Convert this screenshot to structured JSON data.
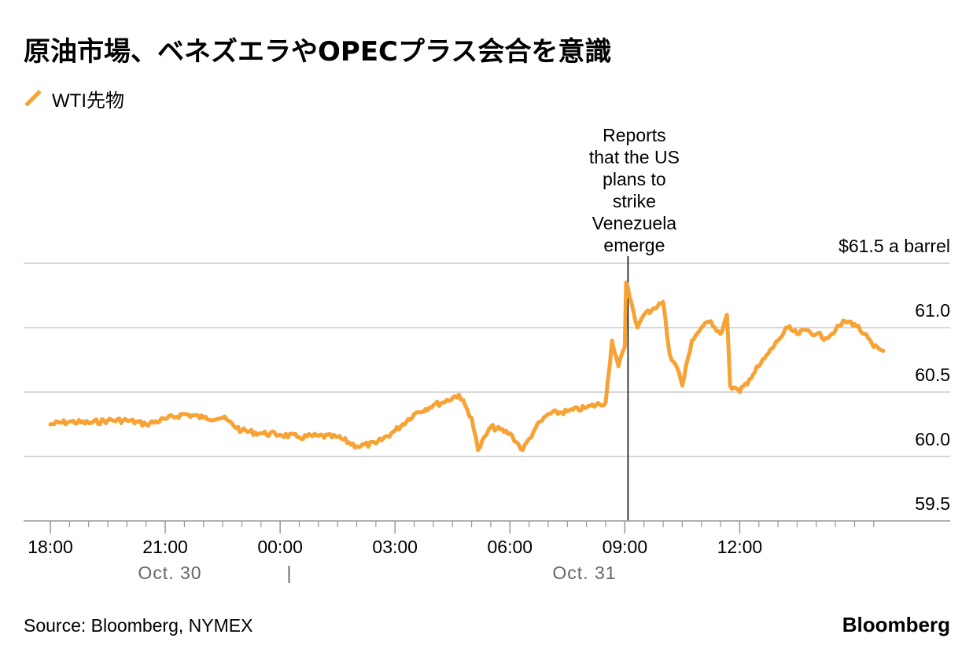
{
  "title": "原油市場、ベネズエラやOPECプラス会合を意識",
  "source": "Source: Bloomberg, NYMEX",
  "brand": "Bloomberg",
  "colors": {
    "series": "#f7a234",
    "grid": "#cccccc",
    "axis": "#999999",
    "date_label": "#666666"
  },
  "chart_data": {
    "type": "line",
    "title": "原油市場、ベネズエラやOPECプラス会合を意識",
    "ylabel": "$61.5 a barrel",
    "ylim": [
      59.5,
      61.5
    ],
    "xlim": [
      "Oct. 30 18:00",
      "Oct. 31 15:45"
    ],
    "x_ticks": [
      "18:00",
      "21:00",
      "00:00",
      "03:00",
      "06:00",
      "09:00",
      "12:00"
    ],
    "y_ticks": [
      "59.5",
      "60.0",
      "60.5",
      "61.0"
    ],
    "date_labels": [
      "Oct. 30",
      "|",
      "Oct. 31"
    ],
    "grid": true,
    "legend_position": "top-left",
    "annotation": {
      "x": "Oct. 31 09:05",
      "text": [
        "Reports",
        "that the US",
        "plans to",
        "strike",
        "Venezuela",
        "emerge"
      ]
    },
    "series": [
      {
        "name": "WTI先物",
        "x": [
          "Oct. 30 18:00",
          "Oct. 30 18:30",
          "Oct. 30 19:00",
          "Oct. 30 19:30",
          "Oct. 30 20:00",
          "Oct. 30 20:30",
          "Oct. 30 21:00",
          "Oct. 30 21:30",
          "Oct. 30 22:00",
          "Oct. 30 22:30",
          "Oct. 30 23:00",
          "Oct. 30 23:30",
          "Oct. 31 00:00",
          "Oct. 31 00:30",
          "Oct. 31 01:00",
          "Oct. 31 01:30",
          "Oct. 31 02:00",
          "Oct. 31 02:30",
          "Oct. 31 03:00",
          "Oct. 31 03:30",
          "Oct. 31 04:00",
          "Oct. 31 04:15",
          "Oct. 31 04:40",
          "Oct. 31 05:00",
          "Oct. 31 05:10",
          "Oct. 31 05:30",
          "Oct. 31 06:00",
          "Oct. 31 06:20",
          "Oct. 31 06:40",
          "Oct. 31 07:00",
          "Oct. 31 07:30",
          "Oct. 31 08:00",
          "Oct. 31 08:30",
          "Oct. 31 08:40",
          "Oct. 31 08:50",
          "Oct. 31 09:00",
          "Oct. 31 09:02",
          "Oct. 31 09:10",
          "Oct. 31 09:20",
          "Oct. 31 09:30",
          "Oct. 31 09:45",
          "Oct. 31 10:00",
          "Oct. 31 10:10",
          "Oct. 31 10:25",
          "Oct. 31 10:30",
          "Oct. 31 10:45",
          "Oct. 31 11:00",
          "Oct. 31 11:15",
          "Oct. 31 11:30",
          "Oct. 31 11:40",
          "Oct. 31 11:45",
          "Oct. 31 12:00",
          "Oct. 31 12:15",
          "Oct. 31 12:30",
          "Oct. 31 12:45",
          "Oct. 31 13:00",
          "Oct. 31 13:15",
          "Oct. 31 13:30",
          "Oct. 31 13:45",
          "Oct. 31 14:00",
          "Oct. 31 14:15",
          "Oct. 31 14:30",
          "Oct. 31 14:45",
          "Oct. 31 15:00",
          "Oct. 31 15:15",
          "Oct. 31 15:30",
          "Oct. 31 15:45"
        ],
        "y": [
          60.25,
          60.27,
          60.26,
          60.28,
          60.28,
          60.25,
          60.29,
          60.33,
          60.3,
          60.3,
          60.2,
          60.18,
          60.17,
          60.15,
          60.16,
          60.15,
          60.08,
          60.1,
          60.2,
          60.33,
          60.4,
          60.42,
          60.48,
          60.3,
          60.05,
          60.23,
          60.18,
          60.05,
          60.22,
          60.33,
          60.35,
          60.38,
          60.42,
          60.9,
          60.7,
          60.85,
          61.35,
          61.2,
          61.0,
          61.1,
          61.15,
          61.2,
          60.8,
          60.65,
          60.55,
          60.9,
          61.0,
          61.05,
          60.95,
          61.1,
          60.55,
          60.5,
          60.6,
          60.7,
          60.8,
          60.9,
          61.0,
          60.95,
          60.98,
          60.95,
          60.92,
          60.98,
          61.05,
          61.03,
          60.95,
          60.85,
          60.82
        ]
      }
    ]
  }
}
